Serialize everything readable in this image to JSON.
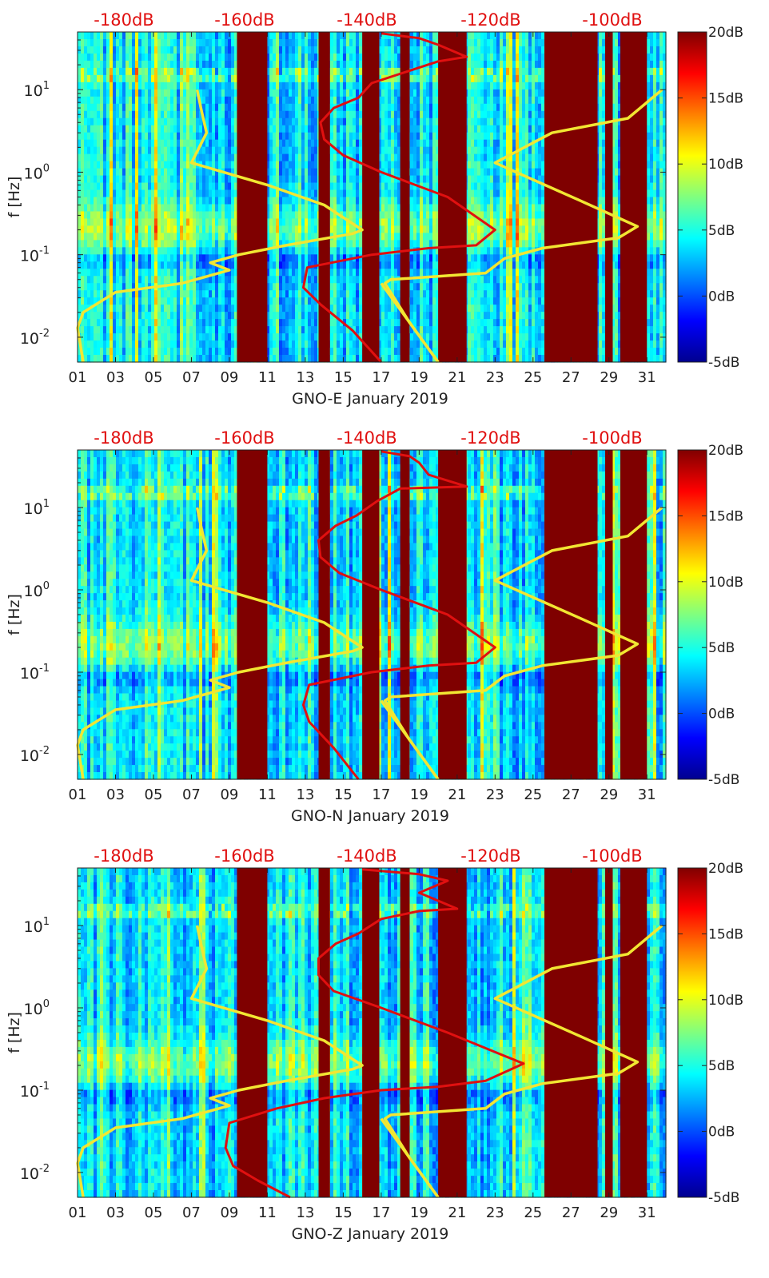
{
  "figure": {
    "xticks": [
      "01",
      "03",
      "05",
      "07",
      "09",
      "11",
      "13",
      "15",
      "17",
      "19",
      "21",
      "23",
      "25",
      "27",
      "29",
      "31"
    ],
    "yticks": [
      {
        "base": "10",
        "exp": "1",
        "val": 10
      },
      {
        "base": "10",
        "exp": "0",
        "val": 1
      },
      {
        "base": "10",
        "exp": "-1",
        "val": 0.1
      },
      {
        "base": "10",
        "exp": "-2",
        "val": 0.01
      }
    ],
    "ylabel": "f [Hz]",
    "colorbar": {
      "ticks": [
        "20dB",
        "15dB",
        "10dB",
        "5dB",
        "0dB",
        "-5dB"
      ],
      "range": [
        -5,
        20
      ]
    },
    "top_labels": [
      "-180dB",
      "-160dB",
      "-140dB",
      "-120dB",
      "-100dB"
    ],
    "colors": {
      "red_curve": "#e01010",
      "yellow_curve": "#f2e632",
      "top_label": "#e01010",
      "saturated": "#7f0000"
    }
  },
  "chart_data": [
    {
      "type": "heatmap",
      "title": "GNO-E January 2019",
      "xlabel": "GNO-E January 2019",
      "ylabel": "f [Hz]",
      "x_range": [
        1,
        32
      ],
      "y_range_hz": [
        0.005,
        50
      ],
      "y_scale": "log",
      "color_range_db": [
        -5,
        20
      ],
      "saturated_day_bands": [
        [
          9.4,
          11.0
        ],
        [
          13.7,
          14.3
        ],
        [
          16.0,
          16.9
        ],
        [
          18.0,
          18.5
        ],
        [
          20.0,
          21.5
        ],
        [
          25.6,
          28.4
        ],
        [
          28.8,
          29.2
        ],
        [
          29.6,
          31.0
        ]
      ],
      "red_curve": {
        "top_axis_ticks_db": [
          -180,
          -160,
          -140,
          -120,
          -100
        ],
        "points_day_hz": [
          [
            17.0,
            0.005
          ],
          [
            15.5,
            0.012
          ],
          [
            13.8,
            0.025
          ],
          [
            12.9,
            0.04
          ],
          [
            13.1,
            0.07
          ],
          [
            16.5,
            0.1
          ],
          [
            19.5,
            0.12
          ],
          [
            22.0,
            0.13
          ],
          [
            23.0,
            0.2
          ],
          [
            20.5,
            0.5
          ],
          [
            17.0,
            1.0
          ],
          [
            15.0,
            1.6
          ],
          [
            14.0,
            2.5
          ],
          [
            13.8,
            4.0
          ],
          [
            14.5,
            6.0
          ],
          [
            15.8,
            8.0
          ],
          [
            16.5,
            12.0
          ],
          [
            18.5,
            17.0
          ],
          [
            20.0,
            22.0
          ],
          [
            21.5,
            25.0
          ],
          [
            20.0,
            35.0
          ],
          [
            19.0,
            42.0
          ],
          [
            17.0,
            48.0
          ]
        ]
      },
      "yellow_curves": [
        {
          "points_day_hz": [
            [
              1.3,
              0.005
            ],
            [
              1.0,
              0.013
            ],
            [
              1.3,
              0.02
            ],
            [
              3.0,
              0.035
            ],
            [
              6.5,
              0.045
            ],
            [
              9.0,
              0.065
            ],
            [
              8.0,
              0.08
            ],
            [
              9.5,
              0.1
            ],
            [
              12.0,
              0.13
            ],
            [
              15.5,
              0.18
            ],
            [
              16.0,
              0.2
            ],
            [
              14.0,
              0.4
            ],
            [
              11.0,
              0.7
            ],
            [
              7.0,
              1.3
            ],
            [
              7.8,
              3.0
            ],
            [
              7.5,
              6.0
            ],
            [
              7.3,
              10.0
            ]
          ]
        },
        {
          "points_day_hz": [
            [
              20.0,
              0.005
            ],
            [
              18.5,
              0.015
            ],
            [
              17.2,
              0.045
            ],
            [
              17.5,
              0.05
            ],
            [
              22.5,
              0.06
            ],
            [
              23.5,
              0.09
            ],
            [
              25.5,
              0.12
            ],
            [
              29.5,
              0.16
            ],
            [
              30.5,
              0.22
            ],
            [
              27.5,
              0.45
            ],
            [
              23.0,
              1.3
            ],
            [
              26.0,
              3.0
            ],
            [
              30.0,
              4.5
            ],
            [
              31.8,
              10.0
            ]
          ]
        },
        {
          "points_day_hz": [
            [
              17.0,
              0.045
            ],
            [
              20.0,
              0.005
            ]
          ]
        }
      ]
    },
    {
      "type": "heatmap",
      "title": "GNO-N January 2019",
      "xlabel": "GNO-N January 2019",
      "ylabel": "f [Hz]",
      "x_range": [
        1,
        32
      ],
      "y_range_hz": [
        0.005,
        50
      ],
      "y_scale": "log",
      "color_range_db": [
        -5,
        20
      ],
      "saturated_day_bands": [
        [
          9.4,
          11.0
        ],
        [
          13.7,
          14.3
        ],
        [
          16.0,
          16.9
        ],
        [
          18.0,
          18.5
        ],
        [
          20.0,
          21.5
        ],
        [
          25.6,
          28.4
        ],
        [
          28.8,
          29.2
        ],
        [
          29.6,
          31.0
        ]
      ],
      "red_curve": {
        "top_axis_ticks_db": [
          -180,
          -160,
          -140,
          -120,
          -100
        ],
        "points_day_hz": [
          [
            15.8,
            0.005
          ],
          [
            14.5,
            0.012
          ],
          [
            13.2,
            0.025
          ],
          [
            12.9,
            0.04
          ],
          [
            13.2,
            0.07
          ],
          [
            16.5,
            0.1
          ],
          [
            19.5,
            0.12
          ],
          [
            22.0,
            0.13
          ],
          [
            23.0,
            0.2
          ],
          [
            20.5,
            0.5
          ],
          [
            17.0,
            1.0
          ],
          [
            14.8,
            1.6
          ],
          [
            13.8,
            2.5
          ],
          [
            13.7,
            4.0
          ],
          [
            14.6,
            6.0
          ],
          [
            15.7,
            8.0
          ],
          [
            16.8,
            12.0
          ],
          [
            18.0,
            17.0
          ],
          [
            21.5,
            18.0
          ],
          [
            19.5,
            25.0
          ],
          [
            19.0,
            35.0
          ],
          [
            18.5,
            42.0
          ],
          [
            17.0,
            48.0
          ]
        ]
      },
      "yellow_curves": [
        {
          "points_day_hz": [
            [
              1.3,
              0.005
            ],
            [
              1.0,
              0.013
            ],
            [
              1.3,
              0.02
            ],
            [
              3.0,
              0.035
            ],
            [
              6.5,
              0.045
            ],
            [
              9.0,
              0.065
            ],
            [
              8.0,
              0.08
            ],
            [
              9.5,
              0.1
            ],
            [
              12.0,
              0.13
            ],
            [
              15.5,
              0.18
            ],
            [
              16.0,
              0.2
            ],
            [
              14.0,
              0.4
            ],
            [
              11.0,
              0.7
            ],
            [
              7.0,
              1.3
            ],
            [
              7.8,
              3.0
            ],
            [
              7.5,
              6.0
            ],
            [
              7.3,
              10.0
            ]
          ]
        },
        {
          "points_day_hz": [
            [
              20.0,
              0.005
            ],
            [
              18.5,
              0.015
            ],
            [
              17.2,
              0.045
            ],
            [
              17.5,
              0.05
            ],
            [
              22.5,
              0.06
            ],
            [
              23.5,
              0.09
            ],
            [
              25.5,
              0.12
            ],
            [
              29.5,
              0.16
            ],
            [
              30.5,
              0.22
            ],
            [
              27.5,
              0.45
            ],
            [
              23.0,
              1.3
            ],
            [
              26.0,
              3.0
            ],
            [
              30.0,
              4.5
            ],
            [
              31.8,
              10.0
            ]
          ]
        },
        {
          "points_day_hz": [
            [
              17.0,
              0.045
            ],
            [
              20.0,
              0.005
            ]
          ]
        }
      ]
    },
    {
      "type": "heatmap",
      "title": "GNO-Z January 2019",
      "xlabel": "GNO-Z January 2019",
      "ylabel": "f [Hz]",
      "x_range": [
        1,
        32
      ],
      "y_range_hz": [
        0.005,
        50
      ],
      "y_scale": "log",
      "color_range_db": [
        -5,
        20
      ],
      "saturated_day_bands": [
        [
          9.4,
          11.0
        ],
        [
          13.7,
          14.3
        ],
        [
          16.0,
          16.9
        ],
        [
          18.0,
          18.5
        ],
        [
          20.0,
          21.5
        ],
        [
          25.6,
          28.4
        ],
        [
          28.8,
          29.2
        ],
        [
          29.6,
          31.0
        ]
      ],
      "red_curve": {
        "top_axis_ticks_db": [
          -180,
          -160,
          -140,
          -120,
          -100
        ],
        "points_day_hz": [
          [
            12.2,
            0.005
          ],
          [
            10.5,
            0.008
          ],
          [
            9.2,
            0.012
          ],
          [
            8.8,
            0.02
          ],
          [
            9.0,
            0.04
          ],
          [
            11.5,
            0.06
          ],
          [
            14.0,
            0.08
          ],
          [
            17.0,
            0.1
          ],
          [
            20.0,
            0.11
          ],
          [
            22.5,
            0.13
          ],
          [
            24.5,
            0.21
          ],
          [
            20.5,
            0.5
          ],
          [
            17.0,
            1.0
          ],
          [
            14.5,
            1.6
          ],
          [
            13.7,
            2.5
          ],
          [
            13.7,
            4.0
          ],
          [
            14.6,
            6.0
          ],
          [
            15.8,
            8.0
          ],
          [
            17.0,
            12.0
          ],
          [
            19.0,
            15.0
          ],
          [
            21.0,
            16.0
          ],
          [
            19.0,
            25.0
          ],
          [
            20.5,
            35.0
          ],
          [
            19.0,
            42.0
          ],
          [
            16.0,
            48.0
          ]
        ]
      },
      "yellow_curves": [
        {
          "points_day_hz": [
            [
              1.3,
              0.005
            ],
            [
              1.0,
              0.013
            ],
            [
              1.3,
              0.02
            ],
            [
              3.0,
              0.035
            ],
            [
              6.5,
              0.045
            ],
            [
              9.0,
              0.065
            ],
            [
              8.0,
              0.08
            ],
            [
              9.5,
              0.1
            ],
            [
              12.0,
              0.13
            ],
            [
              15.5,
              0.18
            ],
            [
              16.0,
              0.2
            ],
            [
              14.0,
              0.4
            ],
            [
              11.0,
              0.7
            ],
            [
              7.0,
              1.3
            ],
            [
              7.8,
              3.0
            ],
            [
              7.5,
              6.0
            ],
            [
              7.3,
              10.0
            ]
          ]
        },
        {
          "points_day_hz": [
            [
              20.0,
              0.005
            ],
            [
              18.5,
              0.015
            ],
            [
              17.2,
              0.045
            ],
            [
              17.5,
              0.05
            ],
            [
              22.5,
              0.06
            ],
            [
              23.5,
              0.09
            ],
            [
              25.5,
              0.12
            ],
            [
              29.5,
              0.16
            ],
            [
              30.5,
              0.22
            ],
            [
              27.5,
              0.45
            ],
            [
              23.0,
              1.3
            ],
            [
              26.0,
              3.0
            ],
            [
              30.0,
              4.5
            ],
            [
              31.8,
              10.0
            ]
          ]
        },
        {
          "points_day_hz": [
            [
              17.0,
              0.045
            ],
            [
              20.0,
              0.005
            ]
          ]
        }
      ]
    }
  ]
}
